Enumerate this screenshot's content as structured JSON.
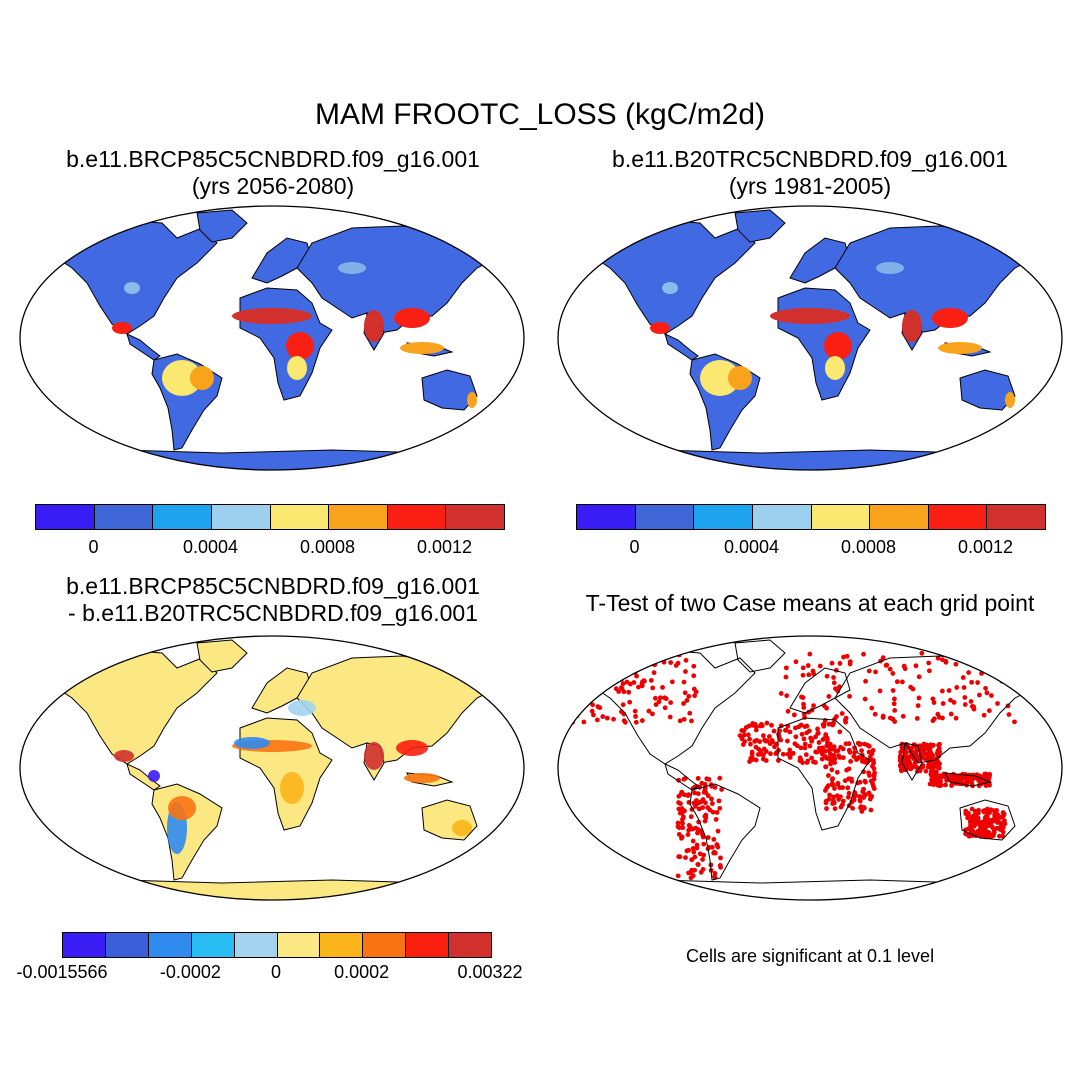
{
  "title": "MAM FROOTC_LOSS (kgC/m2d)",
  "panels": [
    {
      "id": "case1",
      "title_line1": "b.e11.BRCP85C5CNBDRD.f09_g16.001",
      "title_line2": "(yrs 2056-2080)",
      "ocean_color": "#ffffff",
      "land_base": "#4169e1",
      "colorbar": {
        "colors": [
          "#3a1cf5",
          "#3f67d8",
          "#1ea3ee",
          "#9dcfee",
          "#fbe871",
          "#f9a21c",
          "#f91f12",
          "#d2302c"
        ],
        "ticks": [
          "0",
          "0.0004",
          "0.0008",
          "0.0012"
        ]
      }
    },
    {
      "id": "case2",
      "title_line1": "b.e11.B20TRC5CNBDRD.f09_g16.001",
      "title_line2": "(yrs 1981-2005)",
      "ocean_color": "#ffffff",
      "land_base": "#4169e1",
      "colorbar": {
        "colors": [
          "#3a1cf5",
          "#3f67d8",
          "#1ea3ee",
          "#9dcfee",
          "#fbe871",
          "#f9a21c",
          "#f91f12",
          "#d2302c"
        ],
        "ticks": [
          "0",
          "0.0004",
          "0.0008",
          "0.0012"
        ]
      }
    },
    {
      "id": "difference",
      "title_line1": "b.e11.BRCP85C5CNBDRD.f09_g16.001",
      "title_line2": "- b.e11.B20TRC5CNBDRD.f09_g16.001",
      "ocean_color": "#ffffff",
      "land_base": "#fbe882",
      "colorbar": {
        "colors": [
          "#3a1cf5",
          "#3a5fd8",
          "#2f8bee",
          "#28bcf2",
          "#a3d3ef",
          "#fbe882",
          "#fbb41a",
          "#f97312",
          "#f91f0e",
          "#d2302c"
        ],
        "ticks": [
          "-0.0015566",
          "-0.0002",
          "0",
          "0.0002",
          "0.00322"
        ]
      }
    },
    {
      "id": "ttest",
      "title_line1": "T-Test of two Case means at each grid point",
      "note": "Cells are significant at 0.1 level",
      "ocean_color": "#ffffff",
      "land_base": "#ffffff",
      "signif_color": "#ee0000"
    }
  ],
  "icons": {
    "map_frame": "robinson-ellipse",
    "coastline": "black-outline"
  }
}
